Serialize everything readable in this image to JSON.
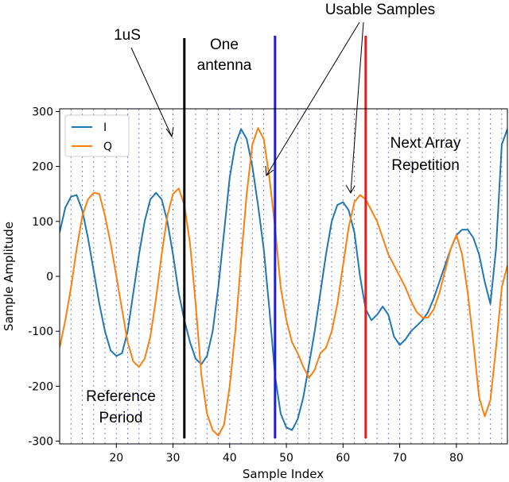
{
  "chart_data": {
    "type": "line",
    "xlabel": "Sample Index",
    "ylabel": "Sample Amplitude",
    "xlim": [
      10,
      89
    ],
    "ylim": [
      -305,
      305
    ],
    "xticks": [
      20,
      30,
      40,
      50,
      60,
      70,
      80
    ],
    "yticks": [
      -300,
      -200,
      -100,
      0,
      100,
      200,
      300
    ],
    "grid_x": [
      12,
      14,
      16,
      18,
      20,
      22,
      24,
      26,
      28,
      30,
      32,
      34,
      36,
      38,
      40,
      42,
      44,
      46,
      48,
      50,
      52,
      54,
      56,
      58,
      60,
      62,
      64,
      66,
      68,
      70,
      72,
      74,
      76,
      78,
      80,
      82,
      84,
      86,
      88
    ],
    "legend": {
      "placement": "top-left",
      "entries": [
        "I",
        "Q"
      ]
    },
    "series": [
      {
        "name": "I",
        "color": "#1f77b4",
        "x": [
          10,
          11,
          12,
          13,
          14,
          15,
          16,
          17,
          18,
          19,
          20,
          21,
          22,
          23,
          24,
          25,
          26,
          27,
          28,
          29,
          30,
          31,
          32,
          33,
          34,
          35,
          36,
          37,
          38,
          39,
          40,
          41,
          42,
          43,
          44,
          45,
          46,
          47,
          48,
          49,
          50,
          51,
          52,
          53,
          54,
          55,
          56,
          57,
          58,
          59,
          60,
          61,
          62,
          63,
          64,
          65,
          66,
          67,
          68,
          69,
          70,
          71,
          72,
          73,
          74,
          75,
          76,
          77,
          78,
          79,
          80,
          81,
          82,
          83,
          84,
          85,
          86,
          87,
          88,
          89
        ],
        "y": [
          80,
          125,
          145,
          148,
          120,
          70,
          10,
          -50,
          -100,
          -135,
          -145,
          -140,
          -100,
          -30,
          40,
          100,
          140,
          152,
          140,
          100,
          40,
          -30,
          -80,
          -120,
          -150,
          -160,
          -145,
          -100,
          -20,
          80,
          180,
          240,
          268,
          250,
          200,
          130,
          50,
          -60,
          -180,
          -250,
          -275,
          -280,
          -260,
          -220,
          -160,
          -100,
          -30,
          40,
          100,
          130,
          135,
          120,
          80,
          0,
          -60,
          -80,
          -70,
          -55,
          -70,
          -110,
          -125,
          -115,
          -100,
          -90,
          -80,
          -65,
          -40,
          -10,
          20,
          50,
          75,
          85,
          85,
          70,
          40,
          -10,
          -50,
          50,
          240,
          268
        ]
      },
      {
        "name": "Q",
        "color": "#ff7f0e",
        "x": [
          10,
          11,
          12,
          13,
          14,
          15,
          16,
          17,
          18,
          19,
          20,
          21,
          22,
          23,
          24,
          25,
          26,
          27,
          28,
          29,
          30,
          31,
          32,
          33,
          34,
          35,
          36,
          37,
          38,
          39,
          40,
          41,
          42,
          43,
          44,
          45,
          46,
          47,
          48,
          49,
          50,
          51,
          52,
          53,
          54,
          55,
          56,
          57,
          58,
          59,
          60,
          61,
          62,
          63,
          64,
          65,
          66,
          67,
          68,
          69,
          70,
          71,
          72,
          73,
          74,
          75,
          76,
          77,
          78,
          79,
          80,
          81,
          82,
          83,
          84,
          85,
          86,
          87,
          88,
          89
        ],
        "y": [
          -130,
          -80,
          -20,
          50,
          110,
          140,
          152,
          150,
          110,
          60,
          0,
          -60,
          -120,
          -155,
          -165,
          -150,
          -110,
          -40,
          40,
          110,
          150,
          160,
          130,
          60,
          -50,
          -180,
          -250,
          -280,
          -290,
          -270,
          -200,
          -100,
          30,
          150,
          240,
          270,
          250,
          180,
          90,
          -20,
          -80,
          -120,
          -140,
          -165,
          -185,
          -170,
          -140,
          -130,
          -100,
          -50,
          20,
          90,
          135,
          148,
          140,
          120,
          100,
          70,
          40,
          20,
          0,
          -20,
          -45,
          -65,
          -75,
          -75,
          -60,
          -30,
          10,
          50,
          75,
          40,
          -30,
          -120,
          -220,
          -255,
          -225,
          -130,
          -20,
          20
        ]
      }
    ],
    "markers": [
      {
        "x": 32,
        "color": "#000000"
      },
      {
        "x": 48,
        "color": "#1f1fd0"
      },
      {
        "x": 64,
        "color": "#e02020"
      }
    ],
    "annotations": [
      {
        "text": "1uS"
      },
      {
        "text": "One"
      },
      {
        "text": "antenna"
      },
      {
        "text": "Usable Samples"
      },
      {
        "text": "Next Array"
      },
      {
        "text": "Repetition"
      },
      {
        "text": "Reference"
      },
      {
        "text": "Period"
      }
    ]
  }
}
